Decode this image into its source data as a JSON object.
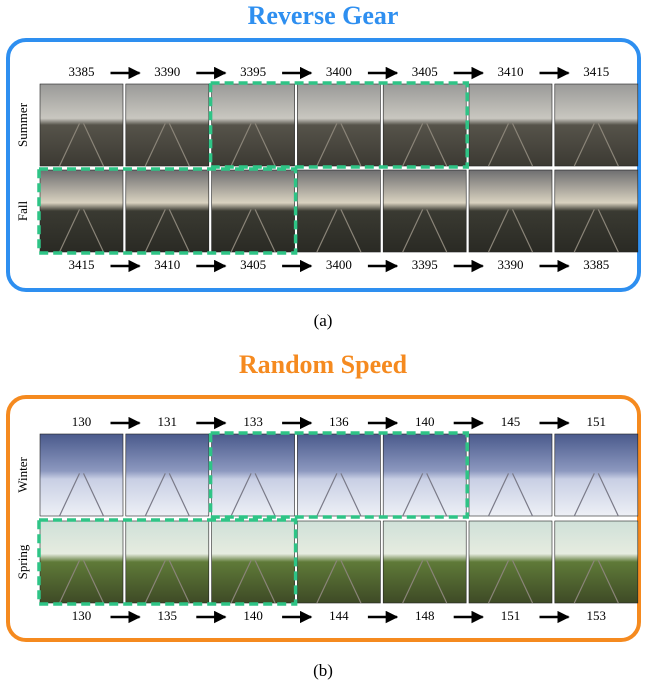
{
  "panels": [
    {
      "title": "Reverse Gear",
      "caption": "(a)",
      "rows": [
        {
          "label": "Summer",
          "frames": [
            3385,
            3390,
            3395,
            3400,
            3405,
            3410,
            3415
          ]
        },
        {
          "label": "Fall",
          "frames": [
            3415,
            3410,
            3405,
            3400,
            3395,
            3390,
            3385
          ]
        }
      ]
    },
    {
      "title": "Random Speed",
      "caption": "(b)",
      "rows": [
        {
          "label": "Winter",
          "frames": [
            130,
            131,
            133,
            136,
            140,
            145,
            151
          ]
        },
        {
          "label": "Spring",
          "frames": [
            130,
            135,
            140,
            144,
            148,
            151,
            153
          ]
        }
      ]
    }
  ]
}
